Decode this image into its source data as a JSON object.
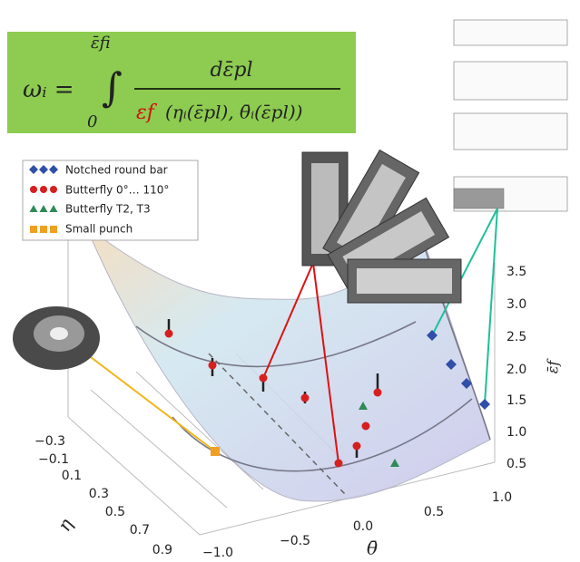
{
  "formula": {
    "lhs": "ωᵢ =",
    "upper": "ε̄fi",
    "lower": "0",
    "numerator": "dε̄pl",
    "denominator_red": "εf",
    "denominator_args": "(ηᵢ(ε̄pl), θ̄ᵢ(ε̄pl))"
  },
  "legend": [
    "Notched round bar",
    "Butterfly 0°… 110°",
    "Butterfly T2, T3",
    "Small punch"
  ],
  "axes": {
    "theta": {
      "label": "θ̄",
      "ticks": [
        "−1.0",
        "−0.5",
        "0.0",
        "0.5",
        "1.0"
      ]
    },
    "eta": {
      "label": "η",
      "ticks": [
        "−0.3",
        "−0.1",
        "0.1",
        "0.3",
        "0.5",
        "0.7",
        "0.9"
      ]
    },
    "strain": {
      "label": "ε̄f",
      "ticks": [
        "0.5",
        "1.0",
        "1.5",
        "2.0",
        "2.5",
        "3.0",
        "3.5"
      ]
    }
  }
}
